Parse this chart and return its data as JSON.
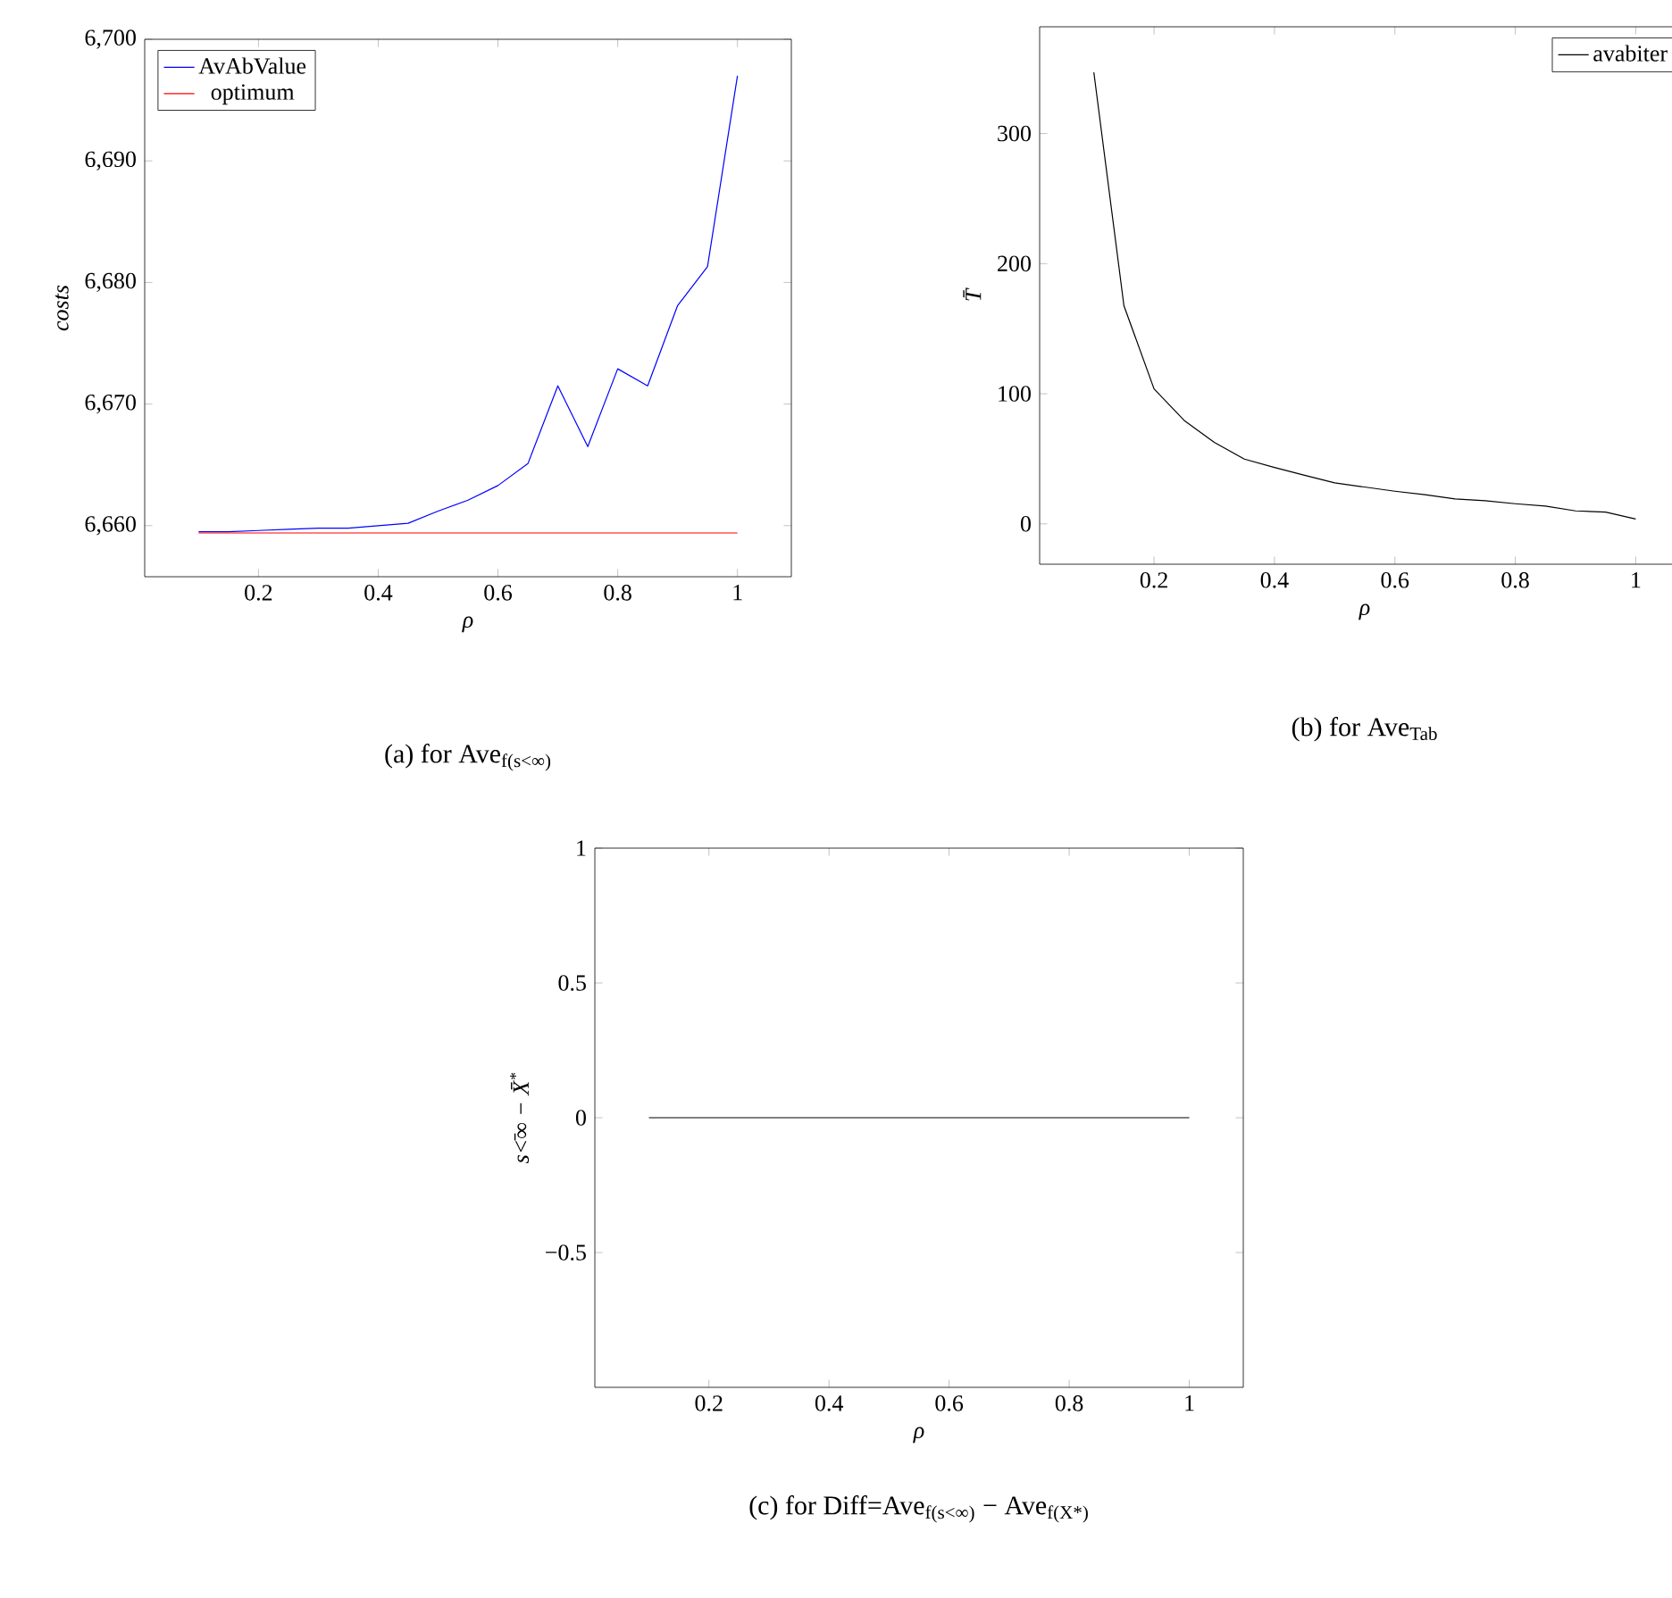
{
  "chart_data": [
    {
      "type": "line",
      "title": "(a) for Ave$_{f(s<∞)}$",
      "xlabel": "ρ",
      "ylabel": "costs",
      "x": [
        0.1,
        0.15,
        0.2,
        0.25,
        0.3,
        0.35,
        0.4,
        0.45,
        0.5,
        0.55,
        0.6,
        0.65,
        0.7,
        0.75,
        0.8,
        0.85,
        0.9,
        0.95,
        1.0
      ],
      "series": [
        {
          "name": "AvAbValue",
          "color": "#0000ff",
          "values": [
            6659.5,
            6659.5,
            6659.6,
            6659.7,
            6659.8,
            6659.8,
            6660.0,
            6660.2,
            6661.2,
            6662.1,
            6663.3,
            6665.1,
            6671.5,
            6666.5,
            6672.9,
            6671.5,
            6678.1,
            6681.3,
            6697
          ]
        },
        {
          "name": "optimum",
          "color": "#ff0000",
          "values": [
            6659.4,
            6659.4,
            6659.4,
            6659.4,
            6659.4,
            6659.4,
            6659.4,
            6659.4,
            6659.4,
            6659.4,
            6659.4,
            6659.4,
            6659.4,
            6659.4,
            6659.4,
            6659.4,
            6659.4,
            6659.4,
            6659.4
          ]
        }
      ],
      "xlim": [
        0.01,
        1.09
      ],
      "ylim": [
        6655.8,
        6700
      ],
      "xticks": [
        0.2,
        0.4,
        0.6,
        0.8,
        1
      ],
      "yticks": [
        {
          "value": 6660,
          "label": "6,660"
        },
        {
          "value": 6670,
          "label": "6,670"
        },
        {
          "value": 6680,
          "label": "6,680"
        },
        {
          "value": 6690,
          "label": "6,690"
        },
        {
          "value": 6700,
          "label": "6,700"
        }
      ],
      "legend": "top left"
    },
    {
      "type": "line",
      "title": "(b) for Ave$_{Tab}$",
      "xlabel": "ρ",
      "ylabel": "T̄",
      "x": [
        0.1,
        0.15,
        0.2,
        0.25,
        0.3,
        0.35,
        0.4,
        0.45,
        0.5,
        0.55,
        0.6,
        0.65,
        0.7,
        0.75,
        0.8,
        0.85,
        0.9,
        0.95,
        1.0
      ],
      "series": [
        {
          "name": "avabiter",
          "color": "#000000",
          "values": [
            347,
            167.6,
            103.7,
            79.5,
            62.6,
            49.8,
            43.4,
            37.4,
            31.5,
            28.3,
            25.1,
            22.4,
            19.2,
            17.8,
            15.5,
            13.7,
            10.0,
            9.1,
            3.7
          ]
        }
      ],
      "xlim": [
        0.01,
        1.09
      ],
      "ylim": [
        -31,
        382
      ],
      "xticks": [
        0.2,
        0.4,
        0.6,
        0.8,
        1
      ],
      "yticks": [
        0,
        100,
        200,
        300
      ],
      "legend": "top right"
    },
    {
      "type": "line",
      "title": "(c) for Diff=Ave$_{f(s<∞)}$ − Ave$_{f(X*)}$",
      "xlabel": "ρ",
      "ylabel": "s<̄∞ − X̄$^{*}$",
      "x": [
        0.1,
        0.15,
        0.2,
        0.25,
        0.3,
        0.35,
        0.4,
        0.45,
        0.5,
        0.55,
        0.6,
        0.65,
        0.7,
        0.75,
        0.8,
        0.85,
        0.9,
        0.95,
        1.0
      ],
      "series": [
        {
          "color": "#000000",
          "values": [
            0,
            0,
            0,
            0,
            0,
            0,
            0,
            0,
            0,
            0,
            0,
            0,
            0,
            0,
            0,
            0,
            0,
            0,
            0
          ]
        }
      ],
      "xlim": [
        0.01,
        1.09
      ],
      "ylim": [
        -1,
        1
      ],
      "xticks": [
        0.2,
        0.4,
        0.6,
        0.8,
        1
      ],
      "yticks": [
        {
          "value": -0.5,
          "label": "−0.5"
        },
        0,
        0.5,
        1
      ]
    }
  ]
}
